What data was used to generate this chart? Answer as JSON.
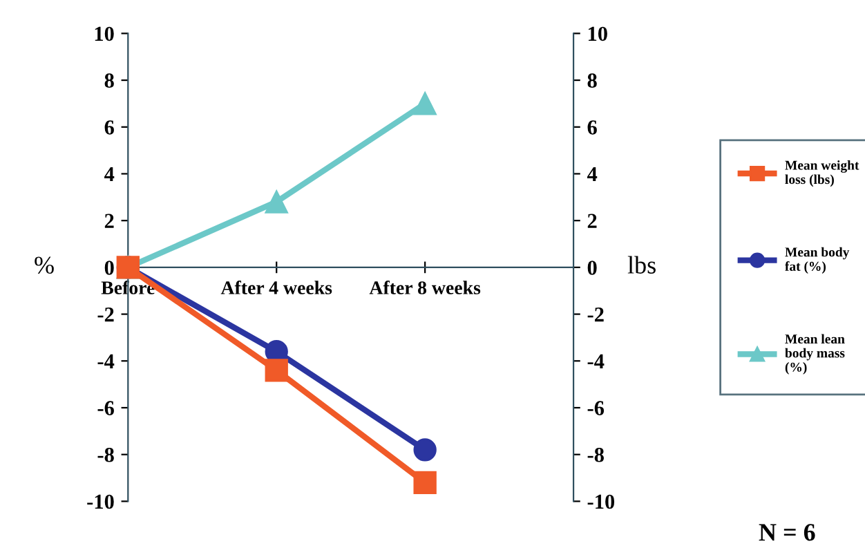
{
  "chart_data": {
    "type": "line",
    "categories": [
      "Before",
      "After 4 weeks",
      "After 8 weeks"
    ],
    "ylabel": "%",
    "y2label": "lbs",
    "ylim": [
      -10,
      10
    ],
    "yticks": [
      -10,
      -8,
      -6,
      -4,
      -2,
      0,
      2,
      4,
      6,
      8,
      10
    ],
    "y2lim": [
      -10,
      10
    ],
    "y2ticks": [
      -10,
      -8,
      -6,
      -4,
      -2,
      0,
      2,
      4,
      6,
      8,
      10
    ],
    "series": [
      {
        "name": "Mean weight loss (lbs)",
        "color": "#f05a28",
        "marker": "square",
        "axis": "y2",
        "values": [
          0,
          -4.4,
          -9.2
        ]
      },
      {
        "name": "Mean body fat (%)",
        "color": "#2b35a0",
        "marker": "circle",
        "values": [
          0,
          -3.6,
          -7.8
        ]
      },
      {
        "name": "Mean lean body mass (%)",
        "color": "#6cc8c8",
        "marker": "triangle",
        "values": [
          0,
          2.8,
          7.0
        ]
      }
    ],
    "grid": false,
    "legend": "right",
    "line_style": "solid",
    "annotations": [
      "N = 6"
    ]
  }
}
